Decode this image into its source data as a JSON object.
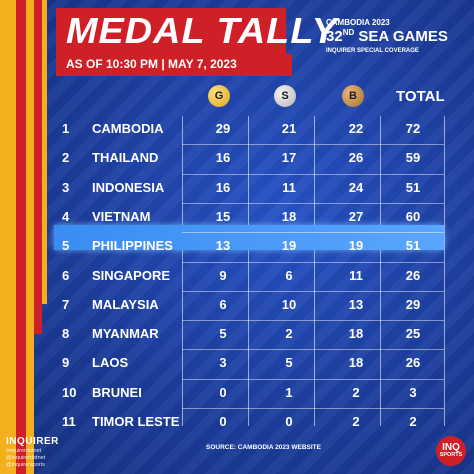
{
  "header": {
    "title": "MEDAL TALLY",
    "subtitle": "AS OF 10:30 PM | MAY 7, 2023",
    "event_line1": "CAMBODIA 2023",
    "event_number": "32",
    "event_suffix": "ND",
    "event_name": " SEA GAMES",
    "coverage": "INQUIRER SPECIAL COVERAGE"
  },
  "columns": {
    "gold": "G",
    "silver": "S",
    "bronze": "B",
    "total": "TOTAL"
  },
  "colors": {
    "gold": "#d9a520",
    "silver": "#b5b5b5",
    "bronze": "#a8702e",
    "highlight": "#3a8cf0",
    "background": "#1d3fa3",
    "accent_red": "#cf2027",
    "accent_yellow": "#f2b01e"
  },
  "rows": [
    {
      "rank": "1",
      "country": "CAMBODIA",
      "gold": "29",
      "silver": "21",
      "bronze": "22",
      "total": "72"
    },
    {
      "rank": "2",
      "country": "THAILAND",
      "gold": "16",
      "silver": "17",
      "bronze": "26",
      "total": "59"
    },
    {
      "rank": "3",
      "country": "INDONESIA",
      "gold": "16",
      "silver": "11",
      "bronze": "24",
      "total": "51"
    },
    {
      "rank": "4",
      "country": "VIETNAM",
      "gold": "15",
      "silver": "18",
      "bronze": "27",
      "total": "60"
    },
    {
      "rank": "5",
      "country": "PHILIPPINES",
      "gold": "13",
      "silver": "19",
      "bronze": "19",
      "total": "51"
    },
    {
      "rank": "6",
      "country": "SINGAPORE",
      "gold": "9",
      "silver": "6",
      "bronze": "11",
      "total": "26"
    },
    {
      "rank": "7",
      "country": "MALAYSIA",
      "gold": "6",
      "silver": "10",
      "bronze": "13",
      "total": "29"
    },
    {
      "rank": "8",
      "country": "MYANMAR",
      "gold": "5",
      "silver": "2",
      "bronze": "18",
      "total": "25"
    },
    {
      "rank": "9",
      "country": "LAOS",
      "gold": "3",
      "silver": "5",
      "bronze": "18",
      "total": "26"
    },
    {
      "rank": "10",
      "country": "BRUNEI",
      "gold": "0",
      "silver": "1",
      "bronze": "2",
      "total": "3"
    },
    {
      "rank": "11",
      "country": "TIMOR LESTE",
      "gold": "0",
      "silver": "0",
      "bronze": "2",
      "total": "2"
    }
  ],
  "footer": {
    "logo": "INQUIRER",
    "social_1": "/inquirerdotnet",
    "social_2": "@inquirerdotnet",
    "social_3": "@inquirersports",
    "source": "SOURCE: CAMBODIA 2023 WEBSITE",
    "badge_top": "INQ",
    "badge_bottom": "SPORTS"
  }
}
